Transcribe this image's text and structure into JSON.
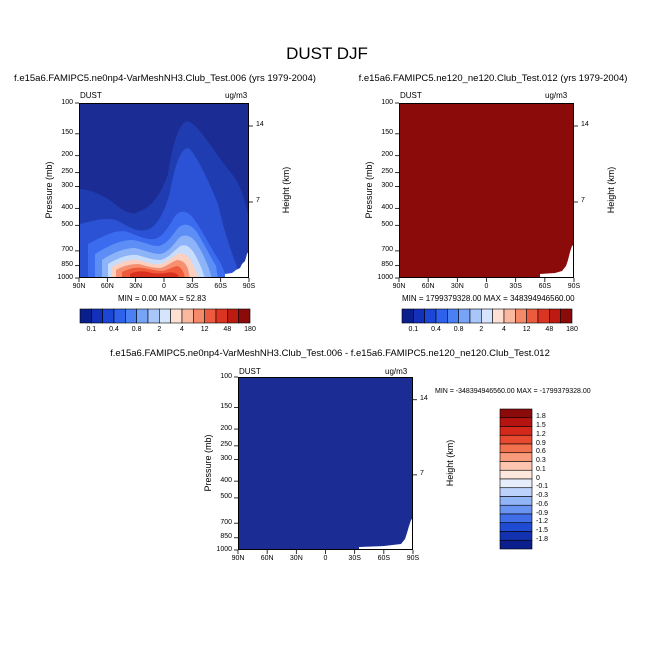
{
  "figure": {
    "title": "DUST DJF"
  },
  "colors": {
    "field_blue": "#1b2c95",
    "field_red": "#8b0a0a",
    "land_white": "#ffffff"
  },
  "chart_data": [
    {
      "type": "heatmap",
      "panel": "top-left",
      "title": "f.e15a6.FAMIPC5.ne0np4-VarMeshNH3.Club_Test.006 (yrs 1979-2004)",
      "left_label": "DUST",
      "right_label": "ug/m3",
      "ylabel": "Pressure (mb)",
      "y2label": "Height (km)",
      "x_tick_labels": [
        "90N",
        "60N",
        "30N",
        "0",
        "30S",
        "60S",
        "90S"
      ],
      "y_tick_labels": [
        "100",
        "150",
        "200",
        "250",
        "300",
        "400",
        "500",
        "700",
        "850",
        "1000"
      ],
      "y_log_scale": true,
      "y2_tick_labels": [
        "14",
        "7"
      ],
      "stats_text": "MIN =   0.00  MAX =  52.83",
      "min": 0.0,
      "max": 52.83,
      "colorbar_labels": [
        "0.1",
        "0.4",
        "0.8",
        "2",
        "4",
        "12",
        "48",
        "180"
      ],
      "levels": [
        0.1,
        0.2,
        0.4,
        0.6,
        0.8,
        1,
        2,
        3,
        4,
        8,
        12,
        24,
        48,
        96,
        180
      ]
    },
    {
      "type": "heatmap",
      "panel": "top-right",
      "title": "f.e15a6.FAMIPC5.ne120_ne120.Club_Test.012 (yrs 1979-2004)",
      "left_label": "DUST",
      "right_label": "ug/m3",
      "ylabel": "Pressure (mb)",
      "y2label": "Height (km)",
      "x_tick_labels": [
        "90N",
        "60N",
        "30N",
        "0",
        "30S",
        "60S",
        "90S"
      ],
      "y_tick_labels": [
        "100",
        "150",
        "200",
        "250",
        "300",
        "400",
        "500",
        "700",
        "850",
        "1000"
      ],
      "y_log_scale": true,
      "y2_tick_labels": [
        "14",
        "7"
      ],
      "stats_text": "MIN = 1799379328.00  MAX = 348394946560.00",
      "min": 1799379328.0,
      "max": 348394946560.0,
      "colorbar_labels": [
        "0.1",
        "0.4",
        "0.8",
        "2",
        "4",
        "12",
        "48",
        "180"
      ]
    },
    {
      "type": "heatmap",
      "panel": "bottom-difference",
      "title": "f.e15a6.FAMIPC5.ne0np4-VarMeshNH3.Club_Test.006 - f.e15a6.FAMIPC5.ne120_ne120.Club_Test.012",
      "left_label": "DUST",
      "right_label": "ug/m3",
      "ylabel": "Pressure (mb)",
      "y2label": "Height (km)",
      "x_tick_labels": [
        "90N",
        "60N",
        "30N",
        "0",
        "30S",
        "60S",
        "90S"
      ],
      "y_tick_labels": [
        "100",
        "150",
        "200",
        "250",
        "300",
        "400",
        "500",
        "700",
        "850",
        "1000"
      ],
      "y_log_scale": true,
      "y2_tick_labels": [
        "14",
        "7"
      ],
      "stats_text": "MIN = -348394946560.00  MAX = -1799379328.00",
      "min": -348394946560.0,
      "max": -1799379328.0,
      "colorbar_labels": [
        "1.8",
        "1.5",
        "1.2",
        "0.9",
        "0.6",
        "0.3",
        "0.1",
        "0",
        "-0.1",
        "-0.3",
        "-0.6",
        "-0.9",
        "-1.2",
        "-1.5",
        "-1.8"
      ]
    }
  ]
}
